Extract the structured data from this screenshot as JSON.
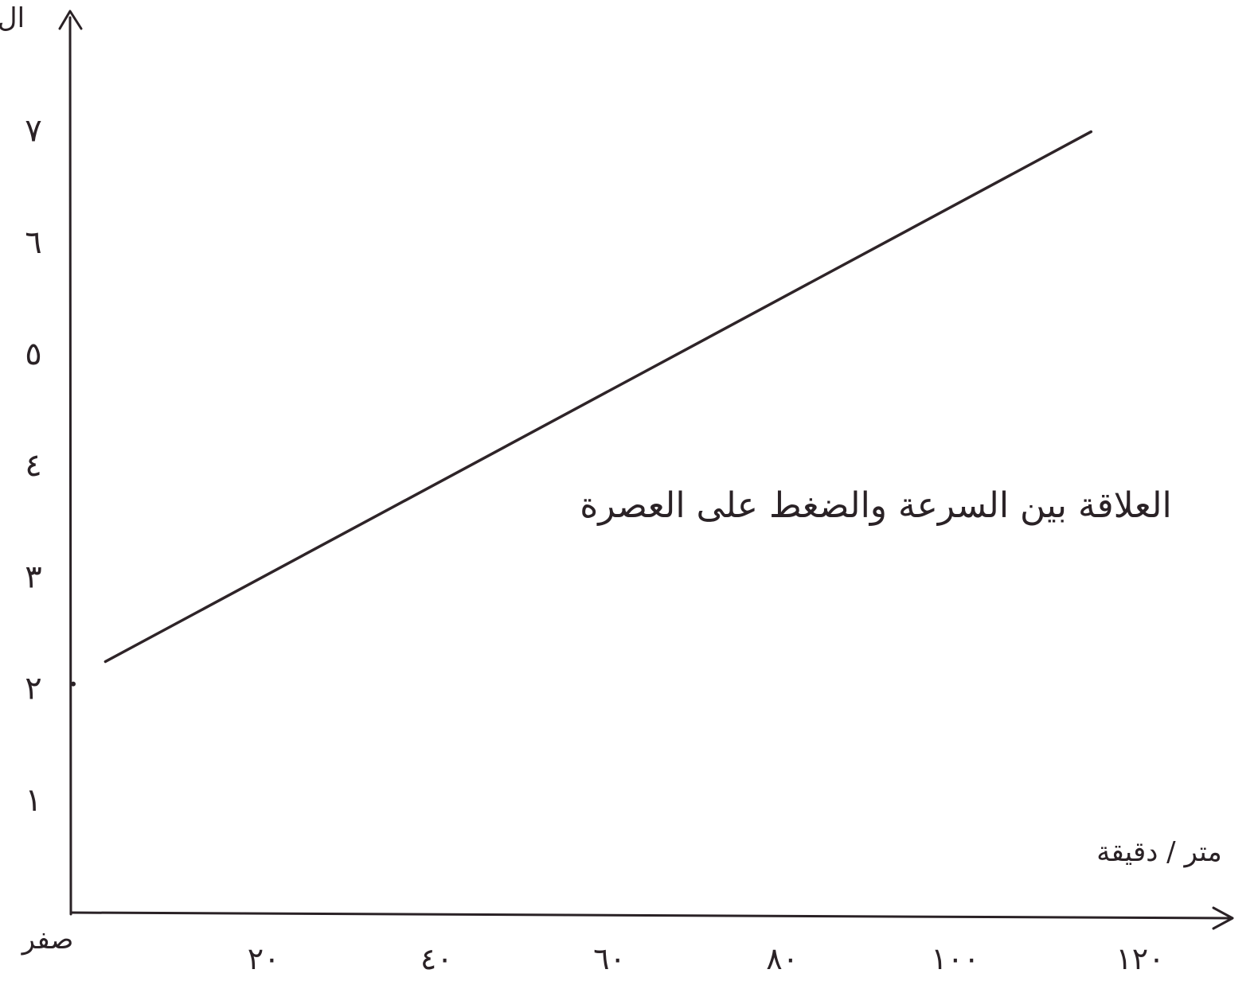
{
  "colors": {
    "ink": "#2a2226",
    "line": "#2e2428",
    "paper": "#ffffff"
  },
  "chart_data": {
    "type": "line",
    "title": "",
    "annotation": "العلاقة بين السرعة والضغط على العصرة",
    "xlabel": "متر / دقيقة",
    "ylabel": "ال",
    "origin_label": "صفر",
    "xlim": [
      0,
      120
    ],
    "ylim": [
      0,
      8
    ],
    "grid": false,
    "x_ticks": [
      {
        "value": 20,
        "label": "٢٠"
      },
      {
        "value": 40,
        "label": "٤٠"
      },
      {
        "value": 60,
        "label": "٦٠"
      },
      {
        "value": 80,
        "label": "٨٠"
      },
      {
        "value": 100,
        "label": "١٠٠"
      },
      {
        "value": 120,
        "label": "١٢٠"
      }
    ],
    "y_ticks": [
      {
        "value": 1,
        "label": "١"
      },
      {
        "value": 2,
        "label": "٢"
      },
      {
        "value": 3,
        "label": "٣"
      },
      {
        "value": 4,
        "label": "٤"
      },
      {
        "value": 5,
        "label": "٥"
      },
      {
        "value": 6,
        "label": "٦"
      },
      {
        "value": 7,
        "label": "٧"
      }
    ],
    "series": [
      {
        "points": [
          {
            "x": 4,
            "y": 2.25
          },
          {
            "x": 118,
            "y": 7.0
          }
        ]
      }
    ]
  }
}
